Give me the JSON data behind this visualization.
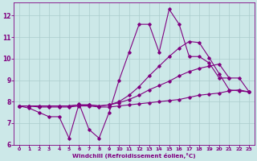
{
  "x_values": [
    0,
    1,
    2,
    3,
    4,
    5,
    6,
    7,
    8,
    9,
    10,
    11,
    12,
    13,
    14,
    15,
    16,
    17,
    18,
    19,
    20,
    21,
    22,
    23
  ],
  "line1_y": [
    7.8,
    7.7,
    7.5,
    7.3,
    7.3,
    6.3,
    7.9,
    6.7,
    6.3,
    7.5,
    9.0,
    10.3,
    11.6,
    11.6,
    10.3,
    12.3,
    11.6,
    10.1,
    10.1,
    9.8,
    9.1,
    9.1,
    null,
    null
  ],
  "line2_y": [
    7.8,
    7.8,
    7.75,
    7.75,
    7.75,
    7.75,
    7.8,
    7.8,
    7.75,
    7.75,
    7.8,
    7.85,
    7.9,
    7.95,
    8.0,
    8.05,
    8.1,
    8.2,
    8.3,
    8.35,
    8.4,
    8.5,
    8.55,
    8.45
  ],
  "line3_y": [
    7.8,
    7.8,
    7.8,
    7.8,
    7.8,
    7.8,
    7.85,
    7.85,
    7.8,
    7.85,
    7.95,
    8.1,
    8.3,
    8.55,
    8.75,
    8.95,
    9.2,
    9.4,
    9.55,
    9.65,
    9.75,
    9.1,
    9.1,
    8.45
  ],
  "line4_y": [
    7.8,
    7.8,
    7.8,
    7.8,
    7.8,
    7.8,
    7.85,
    7.85,
    7.8,
    7.85,
    8.0,
    8.3,
    8.7,
    9.2,
    9.65,
    10.1,
    10.5,
    10.8,
    10.75,
    10.05,
    9.3,
    8.55,
    8.5,
    8.45
  ],
  "line_color": "#800080",
  "bg_color": "#cce8e8",
  "grid_color": "#aacccc",
  "axis_color": "#800080",
  "xlabel": "Windchill (Refroidissement éolien,°C)",
  "xlim": [
    -0.5,
    23.5
  ],
  "ylim": [
    6,
    12.6
  ],
  "yticks": [
    6,
    7,
    8,
    9,
    10,
    11,
    12
  ],
  "xticks": [
    0,
    1,
    2,
    3,
    4,
    5,
    6,
    7,
    8,
    9,
    10,
    11,
    12,
    13,
    14,
    15,
    16,
    17,
    18,
    19,
    20,
    21,
    22,
    23
  ]
}
